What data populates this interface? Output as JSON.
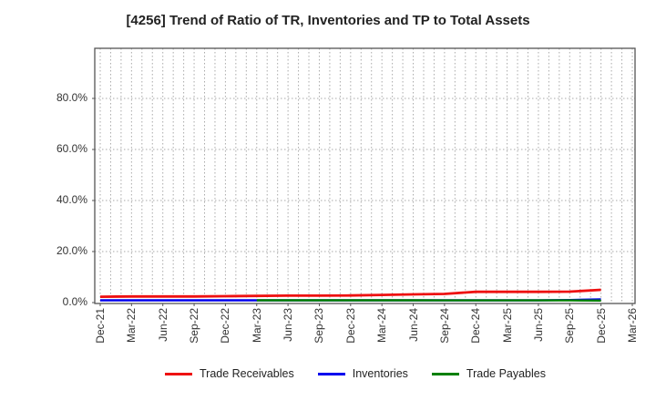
{
  "chart_data": {
    "type": "line",
    "title": "[4256]  Trend of Ratio of TR, Inventories and TP to Total Assets",
    "categories": [
      "Dec-21",
      "Mar-22",
      "Jun-22",
      "Sep-22",
      "Dec-22",
      "Mar-23",
      "Jun-23",
      "Sep-23",
      "Dec-23",
      "Mar-24",
      "Jun-24",
      "Sep-24",
      "Dec-24",
      "Mar-25",
      "Jun-25",
      "Sep-25",
      "Dec-25",
      "Mar-26"
    ],
    "y_tick_labels": [
      "0.0%",
      "20.0%",
      "40.0%",
      "60.0%",
      "80.0%"
    ],
    "y_tick_values": [
      0,
      20,
      40,
      60,
      80
    ],
    "ylim": [
      0,
      100
    ],
    "xlabel": "",
    "ylabel": "",
    "grid": "dotted monthly vertical + horizontal at y ticks",
    "legend_position": "bottom-center",
    "series": [
      {
        "name": "Trade Receivables",
        "color": "#ee1111",
        "stroke_width": 2.8,
        "values": [
          2.3,
          2.4,
          2.4,
          2.4,
          2.5,
          2.6,
          2.7,
          2.7,
          2.8,
          3.0,
          3.2,
          3.4,
          4.2,
          4.2,
          4.2,
          4.3,
          5.0,
          null
        ]
      },
      {
        "name": "Inventories",
        "color": "#0000ee",
        "stroke_width": 2.4,
        "values": [
          0.9,
          0.9,
          0.9,
          0.9,
          0.9,
          0.9,
          0.9,
          0.9,
          0.9,
          0.9,
          0.9,
          0.9,
          0.9,
          0.9,
          0.9,
          1.0,
          1.3,
          null
        ]
      },
      {
        "name": "Trade Payables",
        "color": "#008000",
        "stroke_width": 2.4,
        "values": [
          null,
          null,
          null,
          null,
          null,
          0.9,
          0.9,
          0.9,
          0.9,
          0.9,
          0.9,
          0.85,
          0.85,
          0.85,
          0.85,
          0.85,
          0.8,
          null
        ]
      }
    ],
    "colors": {
      "grid": "#aaaaaa",
      "frame": "#555555",
      "tick_text": "#333333",
      "title_text": "#222222",
      "background": "#ffffff"
    }
  }
}
